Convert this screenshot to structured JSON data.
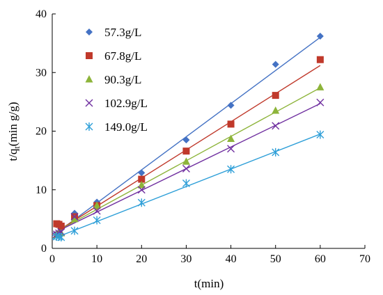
{
  "chart_data": {
    "type": "scatter",
    "title": "",
    "xlabel": "t(min)",
    "ylabel": {
      "prefix": "t/q",
      "subscript": "t",
      "suffix": "(min g/g)"
    },
    "xlim": [
      0,
      70
    ],
    "ylim": [
      0,
      40
    ],
    "x_ticks": [
      0,
      10,
      20,
      30,
      40,
      50,
      60,
      70
    ],
    "y_ticks": [
      0,
      10,
      20,
      30,
      40
    ],
    "grid": false,
    "legend_position": "top-left",
    "x": [
      1,
      1.5,
      2,
      5,
      10,
      20,
      30,
      40,
      50,
      60
    ],
    "series": [
      {
        "name": "57.3g/L",
        "marker": "diamond",
        "color": "#4472C4",
        "values": [
          4.1,
          4.2,
          4.0,
          6.0,
          7.9,
          12.9,
          18.5,
          24.4,
          31.4,
          36.2
        ],
        "fit": {
          "x": [
            0,
            60
          ],
          "y": [
            2.1,
            36.0
          ]
        }
      },
      {
        "name": "67.8g/L",
        "marker": "square",
        "color": "#C0392B",
        "values": [
          4.2,
          4.1,
          3.8,
          5.4,
          7.3,
          11.8,
          16.6,
          21.2,
          26.1,
          32.2
        ],
        "fit": {
          "x": [
            0,
            60
          ],
          "y": [
            2.4,
            31.2
          ]
        }
      },
      {
        "name": "90.3g/L",
        "marker": "triangle",
        "color": "#8DB43A",
        "values": [
          2.3,
          2.5,
          2.6,
          5.0,
          7.3,
          10.8,
          14.8,
          18.7,
          23.5,
          27.5
        ],
        "fit": {
          "x": [
            0,
            60
          ],
          "y": [
            2.5,
            27.4
          ]
        }
      },
      {
        "name": "102.9g/L",
        "marker": "x",
        "color": "#7030A0",
        "values": [
          2.4,
          2.6,
          2.8,
          5.4,
          6.4,
          10.0,
          13.6,
          17.0,
          20.9,
          24.9
        ],
        "fit": {
          "x": [
            0,
            60
          ],
          "y": [
            2.5,
            24.7
          ]
        }
      },
      {
        "name": "149.0g/L",
        "marker": "asterisk",
        "color": "#2E9FD8",
        "values": [
          2.0,
          2.0,
          1.9,
          3.0,
          4.8,
          7.8,
          11.1,
          13.5,
          16.4,
          19.4
        ],
        "fit": {
          "x": [
            0,
            60
          ],
          "y": [
            1.6,
            19.5
          ]
        }
      }
    ]
  }
}
